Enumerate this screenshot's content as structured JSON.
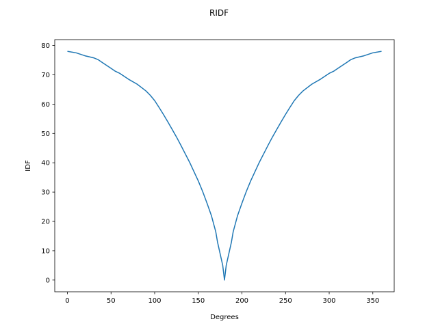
{
  "chart_data": {
    "type": "line",
    "title": "RIDF",
    "xlabel": "Degrees",
    "ylabel": "IDF",
    "xlim": [
      -14.5,
      374.5
    ],
    "ylim": [
      -4,
      82
    ],
    "xticks": [
      0,
      50,
      100,
      150,
      200,
      250,
      300,
      350
    ],
    "yticks": [
      0,
      10,
      20,
      30,
      40,
      50,
      60,
      70,
      80
    ],
    "grid": false,
    "series": [
      {
        "color": "#1f77b4",
        "x": [
          0,
          10,
          20,
          30,
          35,
          40,
          45,
          50,
          55,
          60,
          70,
          80,
          90,
          95,
          100,
          105,
          110,
          115,
          120,
          125,
          130,
          135,
          140,
          145,
          150,
          155,
          160,
          165,
          170,
          172,
          175,
          178,
          180,
          182,
          185,
          188,
          190,
          195,
          200,
          205,
          210,
          215,
          220,
          225,
          230,
          235,
          240,
          245,
          250,
          255,
          260,
          265,
          270,
          280,
          290,
          300,
          305,
          310,
          315,
          320,
          325,
          330,
          340,
          350,
          360
        ],
        "y": [
          78,
          77.5,
          76.5,
          75.8,
          75.2,
          74.2,
          73.2,
          72.2,
          71.2,
          70.5,
          68.5,
          66.8,
          64.5,
          63.0,
          61.2,
          58.9,
          56.5,
          54.0,
          51.4,
          48.8,
          46.0,
          43.1,
          40.2,
          37.0,
          33.8,
          30.2,
          26.2,
          22.0,
          16.5,
          13.0,
          9.0,
          5.0,
          0,
          5.0,
          9.0,
          13.0,
          16.5,
          22.0,
          26.2,
          30.2,
          33.8,
          37.0,
          40.2,
          43.1,
          46.0,
          48.8,
          51.4,
          54.0,
          56.5,
          58.9,
          61.2,
          63.0,
          64.5,
          66.8,
          68.5,
          70.5,
          71.2,
          72.2,
          73.2,
          74.2,
          75.2,
          75.8,
          76.5,
          77.5,
          78
        ]
      }
    ]
  }
}
